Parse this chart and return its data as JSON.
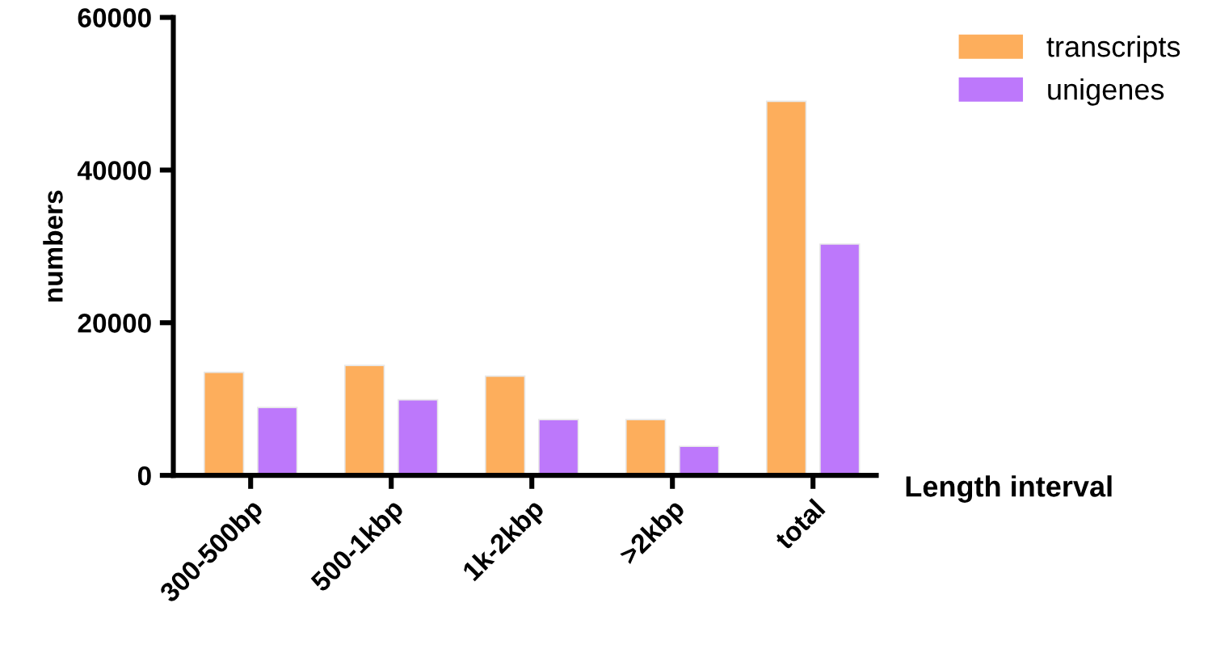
{
  "chart_data": {
    "type": "bar",
    "xlabel": "Length interval",
    "ylabel": "numbers",
    "categories": [
      "300-500bp",
      "500-1kbp",
      "1k-2kbp",
      ">2kbp",
      "total"
    ],
    "series": [
      {
        "name": "transcripts",
        "color": "#fdae5c",
        "values": [
          13500,
          14400,
          13000,
          7300,
          49000
        ]
      },
      {
        "name": "unigenes",
        "color": "#bd78fb",
        "values": [
          8900,
          9900,
          7300,
          3800,
          30300
        ]
      }
    ],
    "ylim": [
      0,
      60000
    ],
    "yticks": [
      0,
      20000,
      40000,
      60000
    ],
    "grid": false,
    "legend": "top right"
  }
}
